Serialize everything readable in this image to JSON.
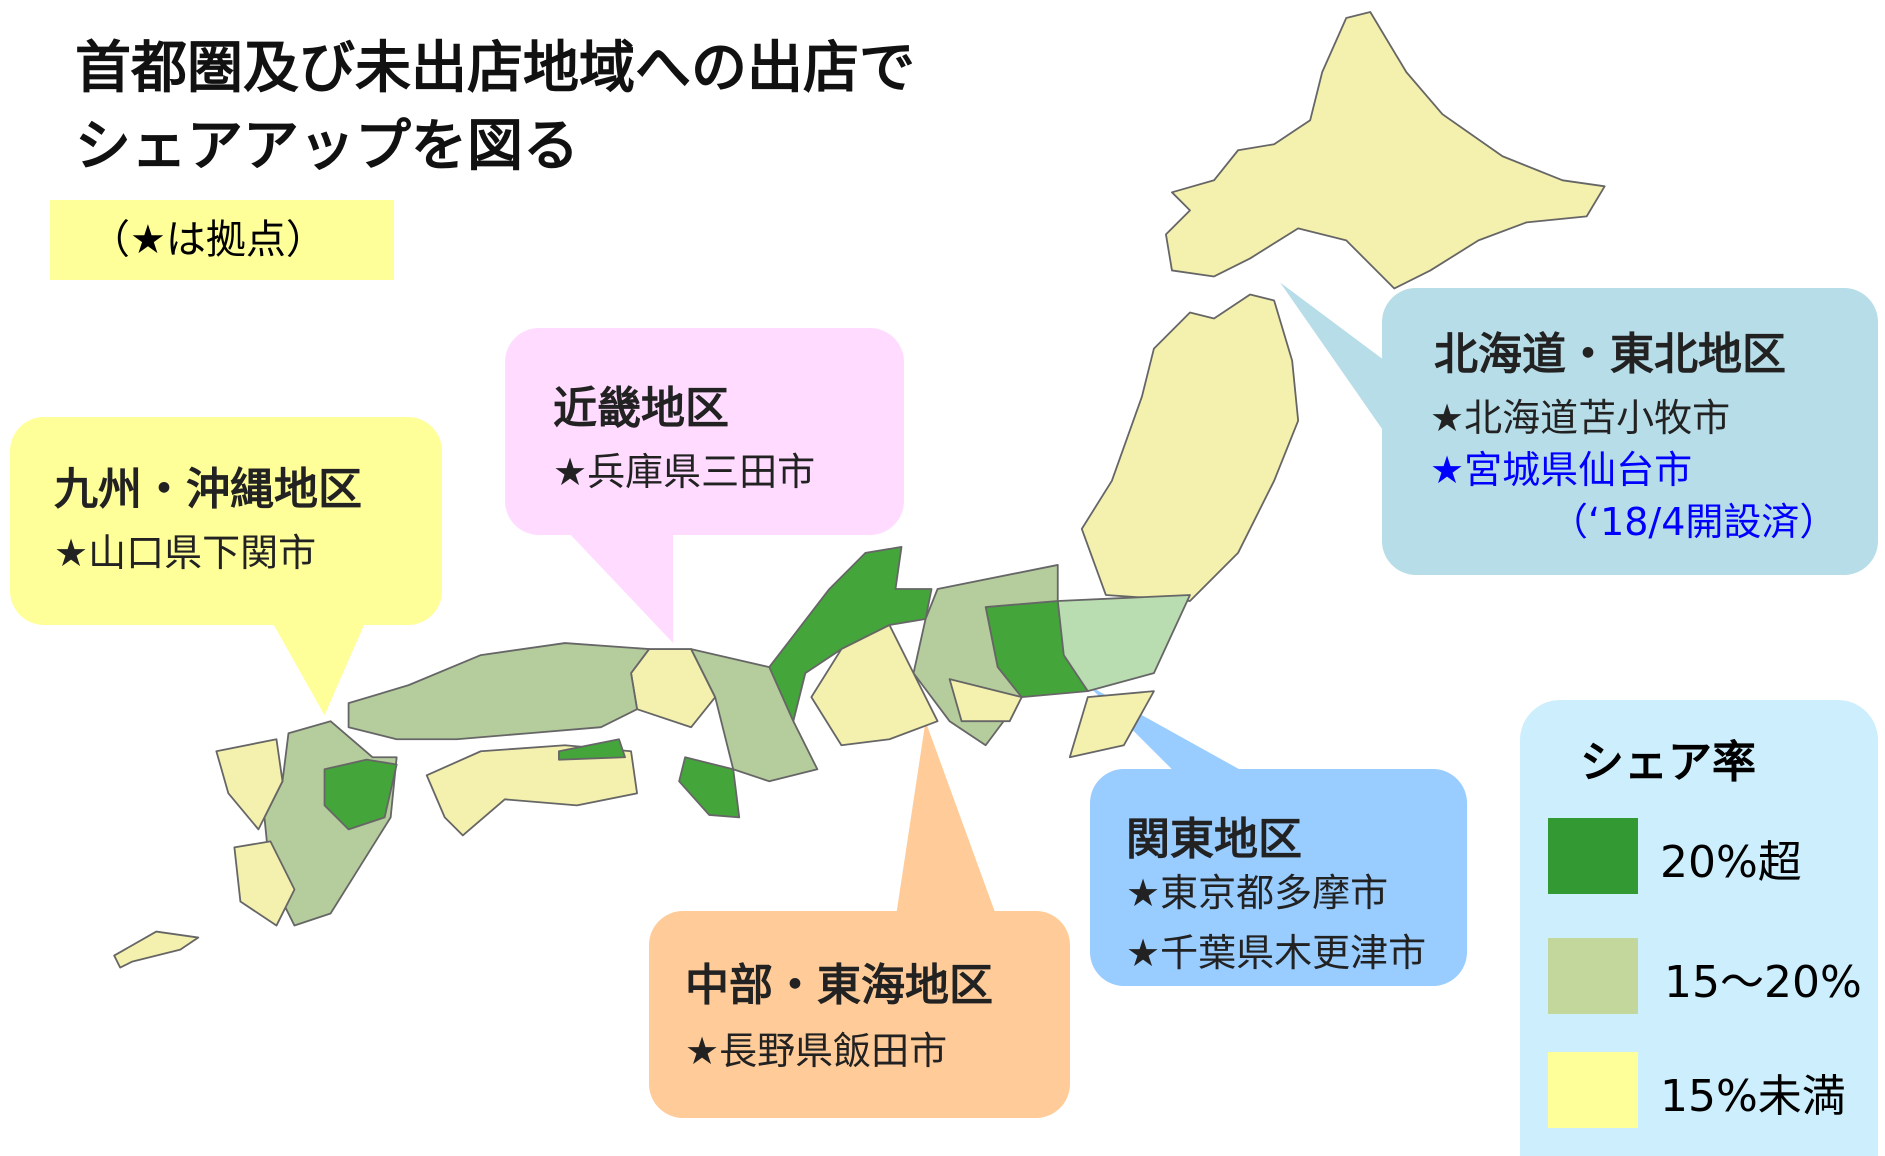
{
  "header": {
    "title": [
      "首都圏及び未出店地域への出店で",
      "シェアアップを図る"
    ],
    "note": "（★は拠点）"
  },
  "regions": [
    {
      "name": "九州・沖縄地区",
      "bases": [
        "★山口県下関市"
      ],
      "color": "#ffff99"
    },
    {
      "name": "近畿地区",
      "bases": [
        "★兵庫県三田市"
      ],
      "color": "#ffdcff"
    },
    {
      "name": "北海道・東北地区",
      "bases": [
        "★北海道苫小牧市",
        "★宮城県仙台市",
        "（‘18/4開設済）"
      ],
      "color": "#b7dde8"
    },
    {
      "name": "関東地区",
      "bases": [
        "★東京都多摩市",
        "★千葉県木更津市"
      ],
      "color": "#99ccff"
    },
    {
      "name": "中部・東海地区",
      "bases": [
        "★長野県飯田市"
      ],
      "color": "#ffcc99"
    }
  ],
  "legend": {
    "title": "シェア率",
    "items": [
      {
        "label": "20%超",
        "color": "#339933"
      },
      {
        "label": "15～20%",
        "color": "#c3d69b"
      },
      {
        "label": "15%未満",
        "color": "#ffff99"
      }
    ]
  }
}
